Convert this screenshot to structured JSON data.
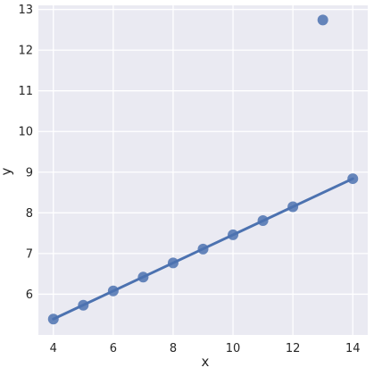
{
  "chart_data": {
    "type": "scatter",
    "title": "",
    "xlabel": "x",
    "ylabel": "y",
    "xlim": [
      3.5,
      14.5
    ],
    "ylim": [
      5.0,
      13.1
    ],
    "grid": true,
    "colors": {
      "background": "#eaeaf2",
      "grid": "#ffffff",
      "series": "#4c72b0"
    },
    "x_ticks": [
      4,
      6,
      8,
      10,
      12,
      14
    ],
    "y_ticks": [
      6,
      7,
      8,
      9,
      10,
      11,
      12,
      13
    ],
    "points": [
      {
        "x": 4,
        "y": 5.39
      },
      {
        "x": 5,
        "y": 5.73
      },
      {
        "x": 6,
        "y": 6.08
      },
      {
        "x": 7,
        "y": 6.42
      },
      {
        "x": 8,
        "y": 6.77
      },
      {
        "x": 9,
        "y": 7.11
      },
      {
        "x": 10,
        "y": 7.46
      },
      {
        "x": 11,
        "y": 7.81
      },
      {
        "x": 12,
        "y": 8.15
      },
      {
        "x": 13,
        "y": 12.74
      },
      {
        "x": 14,
        "y": 8.84
      }
    ],
    "regression_line": {
      "x": [
        4,
        14
      ],
      "y": [
        5.39,
        8.84
      ]
    }
  }
}
